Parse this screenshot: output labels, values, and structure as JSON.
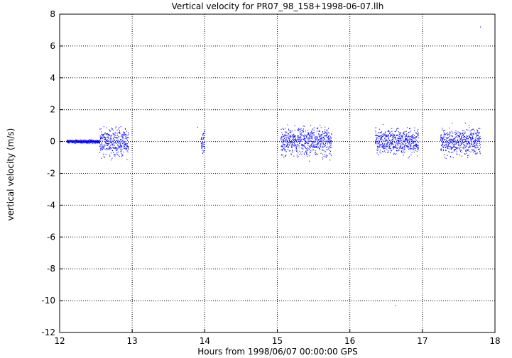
{
  "chart_data": {
    "type": "scatter",
    "title": "Vertical velocity for PR07_98_158+1998-06-07.llh",
    "xlabel": "Hours from 1998/06/07 00:00:00 GPS",
    "ylabel": "vertical velocity (m/s)",
    "xlim": [
      12,
      18
    ],
    "ylim": [
      -12,
      8
    ],
    "xticks": [
      12,
      13,
      14,
      15,
      16,
      17,
      18
    ],
    "yticks": [
      8,
      6,
      4,
      2,
      0,
      -2,
      -4,
      -6,
      -8,
      -10,
      -12
    ],
    "grid": true,
    "legend": "none",
    "colors": {
      "points": "#0000ff",
      "frame": "#000000",
      "grid": "#000000"
    },
    "segments": [
      {
        "x_start": 12.1,
        "x_end": 12.55,
        "y_center": 0.0,
        "spread": 0.15
      },
      {
        "x_start": 12.55,
        "x_end": 12.95,
        "y_center": 0.0,
        "spread": 1.4
      },
      {
        "x_start": 13.95,
        "x_end": 14.0,
        "y_center": 0.0,
        "spread": 1.0
      },
      {
        "x_start": 15.05,
        "x_end": 15.75,
        "y_center": 0.0,
        "spread": 1.3
      },
      {
        "x_start": 16.35,
        "x_end": 16.95,
        "y_center": 0.0,
        "spread": 1.2
      },
      {
        "x_start": 17.25,
        "x_end": 17.8,
        "y_center": 0.0,
        "spread": 1.3
      }
    ],
    "outliers": [
      {
        "x": 17.8,
        "y": 7.2
      },
      {
        "x": 16.63,
        "y": -10.3
      },
      {
        "x": 13.9,
        "y": 0.9
      }
    ]
  }
}
